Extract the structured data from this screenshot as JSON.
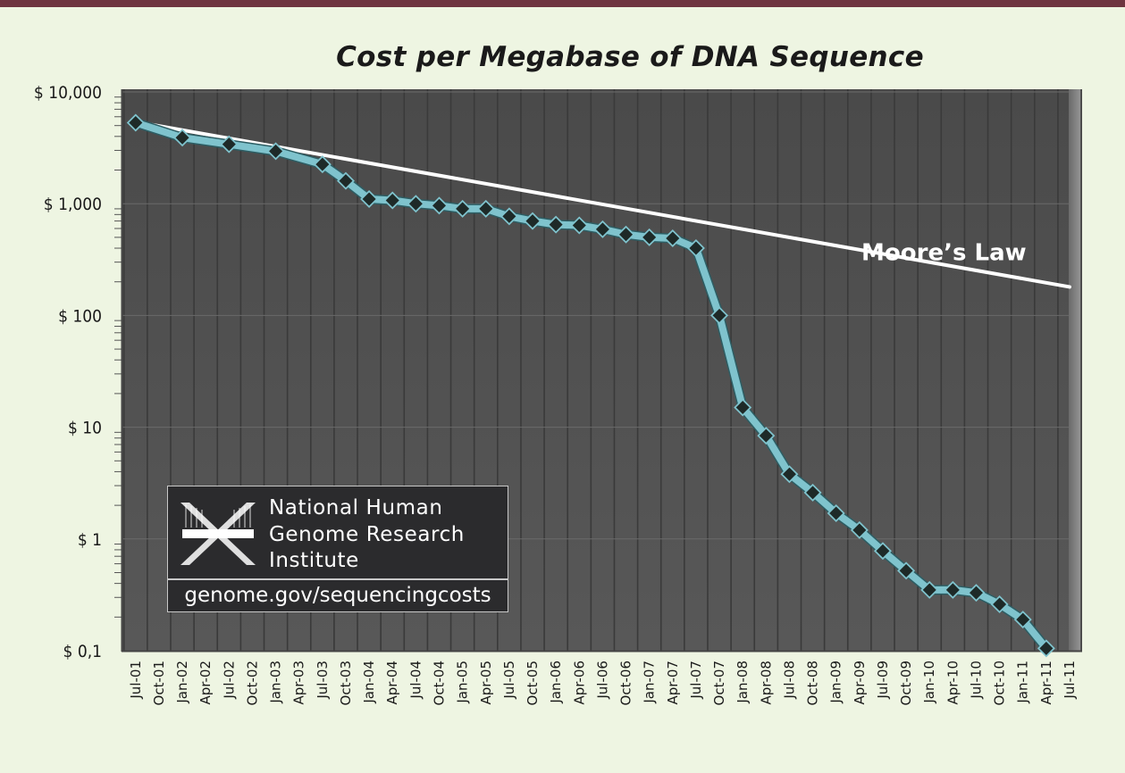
{
  "chart_data": {
    "type": "line",
    "title": "Cost per Megabase of DNA Sequence",
    "xlabel": "",
    "ylabel": "",
    "yscale": "log",
    "ylim": [
      0.1,
      10000
    ],
    "yticks": [
      {
        "value": 10000,
        "label": "$ 10,000"
      },
      {
        "value": 1000,
        "label": "$ 1,000"
      },
      {
        "value": 100,
        "label": "$ 100"
      },
      {
        "value": 10,
        "label": "$ 10"
      },
      {
        "value": 1,
        "label": "$ 1"
      },
      {
        "value": 0.1,
        "label": "$ 0,1"
      }
    ],
    "categories": [
      "Jul-01",
      "Oct-01",
      "Jan-02",
      "Apr-02",
      "Jul-02",
      "Oct-02",
      "Jan-03",
      "Apr-03",
      "Jul-03",
      "Oct-03",
      "Jan-04",
      "Apr-04",
      "Jul-04",
      "Oct-04",
      "Jan-05",
      "Apr-05",
      "Jul-05",
      "Oct-05",
      "Jan-06",
      "Apr-06",
      "Jul-06",
      "Oct-06",
      "Jan-07",
      "Apr-07",
      "Jul-07",
      "Oct-07",
      "Jan-08",
      "Apr-08",
      "Jul-08",
      "Oct-08",
      "Jan-09",
      "Apr-09",
      "Jul-09",
      "Oct-09",
      "Jan-10",
      "Apr-10",
      "Jul-10",
      "Oct-10",
      "Jan-11",
      "Apr-11",
      "Jul-11"
    ],
    "series": [
      {
        "name": "Cost per Megabase",
        "color": "#7fc3cd",
        "marker_color": "#1e2a28",
        "points": [
          {
            "x": "Jul-01",
            "y": 5300
          },
          {
            "x": "Jan-02",
            "y": 3900
          },
          {
            "x": "Jul-02",
            "y": 3400
          },
          {
            "x": "Jan-03",
            "y": 2950
          },
          {
            "x": "Jul-03",
            "y": 2250
          },
          {
            "x": "Oct-03",
            "y": 1600
          },
          {
            "x": "Jan-04",
            "y": 1100
          },
          {
            "x": "Apr-04",
            "y": 1070
          },
          {
            "x": "Jul-04",
            "y": 1000
          },
          {
            "x": "Oct-04",
            "y": 960
          },
          {
            "x": "Jan-05",
            "y": 900
          },
          {
            "x": "Apr-05",
            "y": 900
          },
          {
            "x": "Jul-05",
            "y": 770
          },
          {
            "x": "Oct-05",
            "y": 700
          },
          {
            "x": "Jan-06",
            "y": 650
          },
          {
            "x": "Apr-06",
            "y": 640
          },
          {
            "x": "Jul-06",
            "y": 590
          },
          {
            "x": "Oct-06",
            "y": 530
          },
          {
            "x": "Jan-07",
            "y": 500
          },
          {
            "x": "Apr-07",
            "y": 490
          },
          {
            "x": "Jul-07",
            "y": 400
          },
          {
            "x": "Oct-07",
            "y": 100
          },
          {
            "x": "Jan-08",
            "y": 15
          },
          {
            "x": "Apr-08",
            "y": 8.4
          },
          {
            "x": "Jul-08",
            "y": 3.8
          },
          {
            "x": "Oct-08",
            "y": 2.6
          },
          {
            "x": "Jan-09",
            "y": 1.7
          },
          {
            "x": "Apr-09",
            "y": 1.2
          },
          {
            "x": "Jul-09",
            "y": 0.78
          },
          {
            "x": "Oct-09",
            "y": 0.52
          },
          {
            "x": "Jan-10",
            "y": 0.35
          },
          {
            "x": "Apr-10",
            "y": 0.35
          },
          {
            "x": "Jul-10",
            "y": 0.33
          },
          {
            "x": "Oct-10",
            "y": 0.26
          },
          {
            "x": "Jan-11",
            "y": 0.19
          },
          {
            "x": "Apr-11",
            "y": 0.105
          }
        ]
      },
      {
        "name": "Moore's Law",
        "color": "#ffffff",
        "points": [
          {
            "x": "Jul-01",
            "y": 5400
          },
          {
            "x": "Jul-11",
            "y": 180
          }
        ]
      }
    ],
    "annotations": [
      {
        "text": "Moore’s Law",
        "x": "Apr-10",
        "y": 300
      }
    ],
    "grid": true,
    "legend": "none",
    "colors": {
      "plot_background": "#505050",
      "gridline": "#3a3a3a",
      "page_background": "#eef5e2",
      "top_bar": "#6e3540"
    }
  },
  "logo": {
    "organization_lines": [
      "National Human",
      "Genome Research",
      "Institute"
    ],
    "url": "genome.gov/sequencingcosts"
  }
}
